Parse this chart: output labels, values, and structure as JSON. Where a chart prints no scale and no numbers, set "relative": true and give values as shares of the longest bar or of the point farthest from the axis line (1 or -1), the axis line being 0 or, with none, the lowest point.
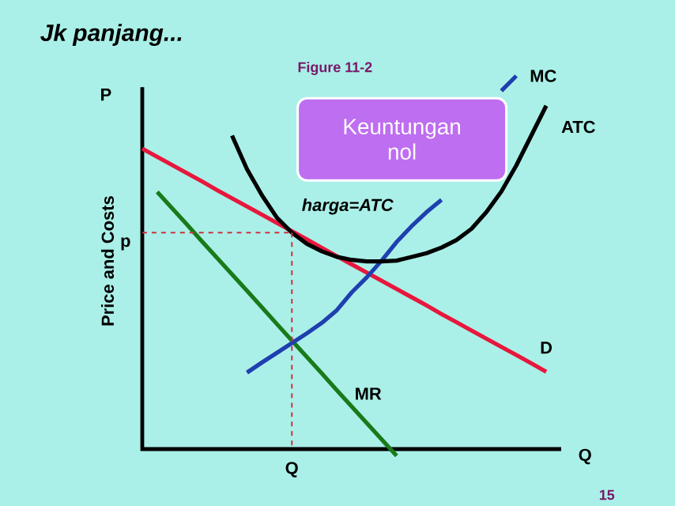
{
  "chart_data": {
    "type": "line",
    "title": "Jk panjang...",
    "subtitle": "Figure 11-2",
    "xlabel": "Q",
    "ylabel": "Price and Costs",
    "relative": true,
    "legend": false,
    "marker": "none",
    "categories": [
      null,
      null,
      null,
      null,
      null,
      null,
      null,
      null,
      null,
      null,
      null,
      null,
      null,
      null,
      null,
      null,
      null,
      null,
      null,
      null,
      null,
      null,
      null,
      null,
      null,
      null,
      null,
      null,
      null
    ],
    "annotations": [
      "P",
      "p",
      "Keuntungan nol",
      "harga=ATC",
      "Q",
      "15"
    ],
    "series": [
      {
        "name": "D",
        "color": "#e8173c",
        "values": [
          0.805,
          0.783,
          0.761,
          0.739,
          0.717,
          0.694,
          0.672,
          0.65,
          0.628,
          0.606,
          0.584,
          0.562,
          0.539,
          0.517,
          0.495,
          0.473,
          0.451,
          0.429,
          0.407,
          0.385,
          0.362,
          0.34,
          0.318,
          0.296,
          0.274,
          0.252,
          0.23,
          0.207,
          null
        ]
      },
      {
        "name": "MR",
        "color": "#1a7a1a",
        "values": [
          null,
          0.689,
          0.645,
          0.601,
          0.556,
          0.512,
          0.468,
          0.424,
          0.38,
          0.335,
          0.291,
          0.247,
          0.203,
          0.158,
          0.114,
          0.07,
          0.026,
          -0.018,
          null,
          null,
          null,
          null,
          null,
          null,
          null,
          null,
          null,
          null,
          null
        ]
      },
      {
        "name": "MC",
        "color": "#1f3fb0",
        "values": [
          null,
          null,
          null,
          null,
          null,
          null,
          null,
          0.205,
          0.232,
          0.258,
          0.284,
          0.31,
          0.338,
          0.372,
          0.42,
          0.46,
          0.505,
          0.555,
          0.597,
          0.635,
          0.668,
          null,
          null,
          null,
          0.96,
          1.0,
          null,
          null,
          null
        ]
      },
      {
        "name": "ATC",
        "color": "#000000",
        "values": [
          null,
          null,
          null,
          null,
          null,
          null,
          0.84,
          0.75,
          0.68,
          0.62,
          0.58,
          0.55,
          0.53,
          0.515,
          0.507,
          0.503,
          0.503,
          0.505,
          0.515,
          0.525,
          0.54,
          0.56,
          0.59,
          0.635,
          0.69,
          0.76,
          0.84,
          0.92,
          null
        ]
      },
      {
        "color": "#d03040",
        "line_style": "dashed",
        "values": [
          0.58,
          0.58,
          0.58,
          0.58,
          0.58,
          0.58,
          0.58,
          0.58,
          0.58,
          0.58,
          0.58,
          null,
          null,
          null,
          null,
          null,
          null,
          null,
          null,
          null,
          null,
          null,
          null,
          null,
          null,
          null,
          null,
          null,
          null
        ]
      }
    ]
  }
}
